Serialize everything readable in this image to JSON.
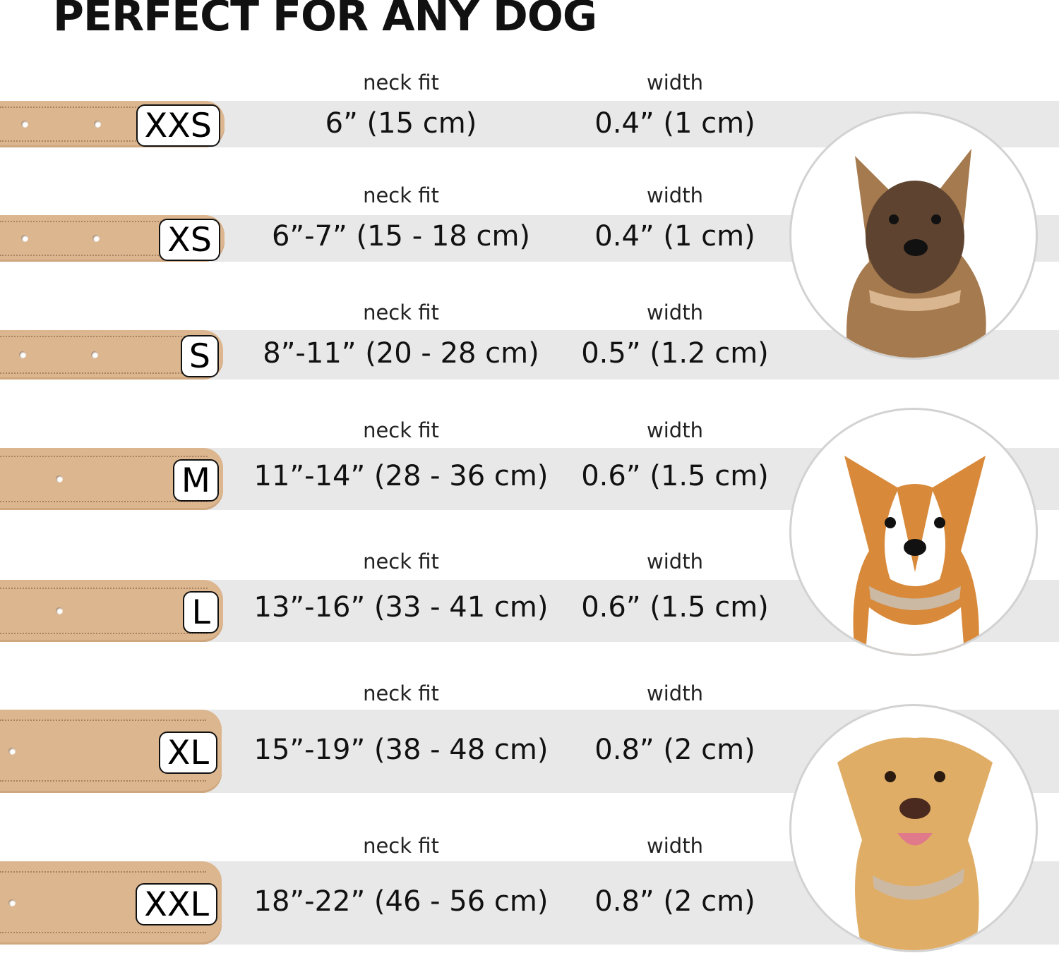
{
  "title": "PERFECT FOR ANY DOG",
  "column_labels": {
    "neck_fit": "neck fit",
    "width": "width"
  },
  "sizes": [
    {
      "size": "XXS",
      "neck_fit": "6” (15 cm)",
      "width": "0.4” (1 cm)"
    },
    {
      "size": "XS",
      "neck_fit": "6”-7” (15 - 18 cm)",
      "width": "0.4” (1 cm)"
    },
    {
      "size": "S",
      "neck_fit": "8”-11” (20 - 28 cm)",
      "width": "0.5” (1.2 cm)"
    },
    {
      "size": "M",
      "neck_fit": "11”-14” (28 - 36 cm)",
      "width": "0.6” (1.5 cm)"
    },
    {
      "size": "L",
      "neck_fit": "13”-16” (33 - 41 cm)",
      "width": "0.6” (1.5 cm)"
    },
    {
      "size": "XL",
      "neck_fit": "15”-19” (38 - 48 cm)",
      "width": "0.8” (2 cm)"
    },
    {
      "size": "XXL",
      "neck_fit": "18”-22” (46 - 56 cm)",
      "width": "0.8” (2 cm)"
    }
  ],
  "images": [
    "small-terrier-dog-photo",
    "corgi-dog-photo",
    "labrador-dog-photo"
  ],
  "colors": {
    "collar": "#dcb68f",
    "band": "#e8e8e8",
    "text": "#111111"
  }
}
